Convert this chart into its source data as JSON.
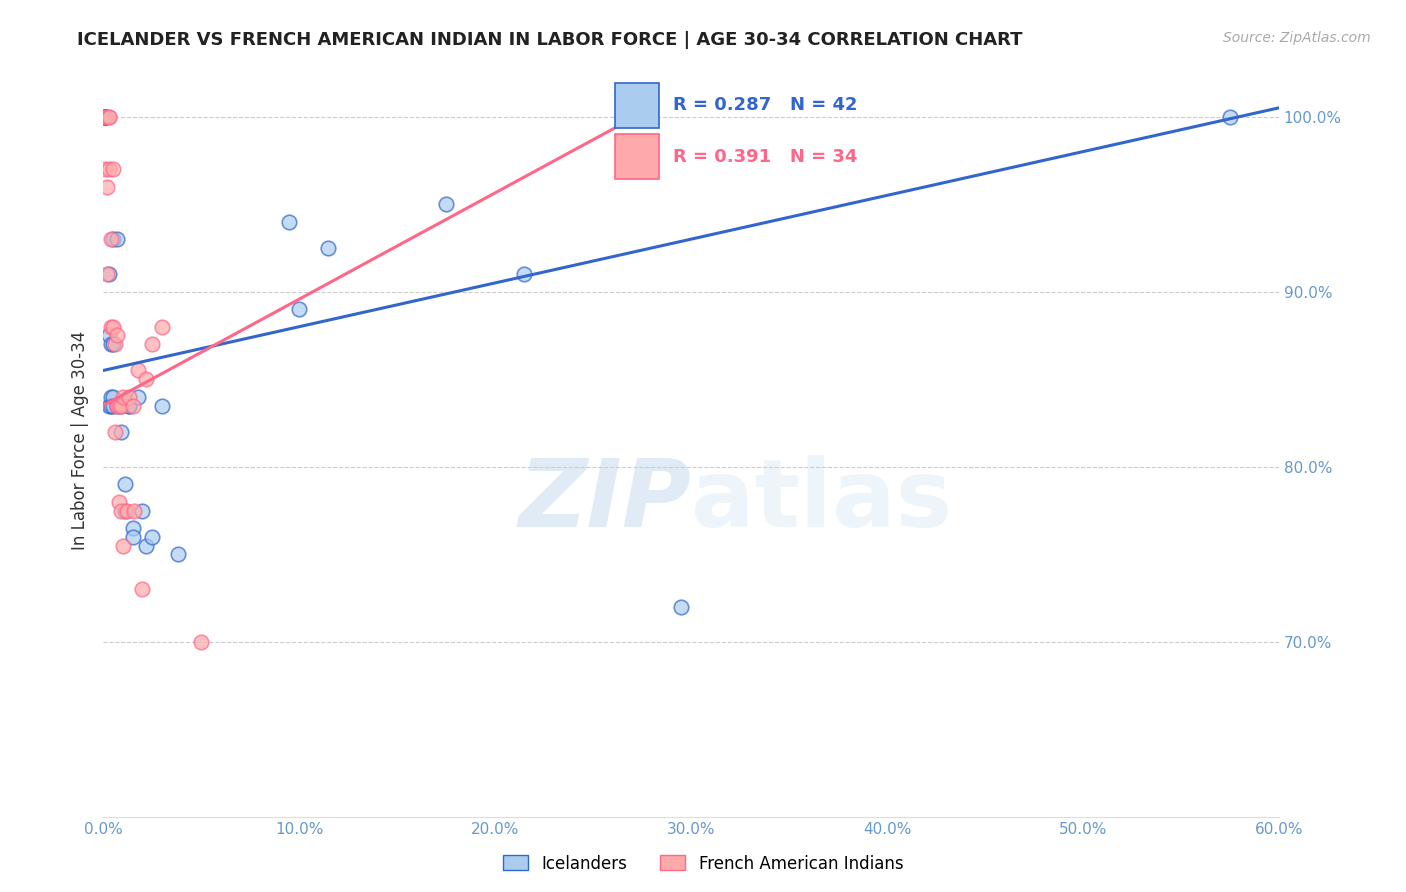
{
  "title": "ICELANDER VS FRENCH AMERICAN INDIAN IN LABOR FORCE | AGE 30-34 CORRELATION CHART",
  "source": "Source: ZipAtlas.com",
  "ylabel": "In Labor Force | Age 30-34",
  "xlim": [
    0.0,
    0.6
  ],
  "ylim": [
    0.6,
    1.03
  ],
  "yticks": [
    0.7,
    0.8,
    0.9,
    1.0
  ],
  "ytick_labels": [
    "70.0%",
    "80.0%",
    "90.0%",
    "100.0%"
  ],
  "xticks": [
    0.0,
    0.1,
    0.2,
    0.3,
    0.4,
    0.5,
    0.6
  ],
  "xtick_labels": [
    "0.0%",
    "10.0%",
    "20.0%",
    "30.0%",
    "40.0%",
    "50.0%",
    "60.0%"
  ],
  "legend_blue_label": "Icelanders",
  "legend_pink_label": "French American Indians",
  "R_blue": 0.287,
  "N_blue": 42,
  "R_pink": 0.391,
  "N_pink": 34,
  "blue_color": "#AACCEE",
  "pink_color": "#FFAAAA",
  "blue_line_color": "#3366CC",
  "pink_line_color": "#FF6688",
  "blue_line_x0": 0.0,
  "blue_line_y0": 0.855,
  "blue_line_x1": 0.6,
  "blue_line_y1": 1.005,
  "pink_line_x0": 0.0,
  "pink_line_y0": 0.835,
  "pink_line_x1": 0.28,
  "pink_line_y1": 1.005,
  "blue_points_x": [
    0.001,
    0.001,
    0.001,
    0.001,
    0.001,
    0.003,
    0.003,
    0.003,
    0.004,
    0.004,
    0.004,
    0.005,
    0.005,
    0.005,
    0.005,
    0.007,
    0.007,
    0.009,
    0.009,
    0.011,
    0.011,
    0.013,
    0.013,
    0.015,
    0.015,
    0.018,
    0.02,
    0.022,
    0.025,
    0.03,
    0.038,
    0.095,
    0.1,
    0.115,
    0.175,
    0.215,
    0.295,
    0.575
  ],
  "blue_points_y": [
    1.0,
    1.0,
    1.0,
    1.0,
    1.0,
    0.91,
    0.875,
    0.835,
    0.87,
    0.84,
    0.835,
    0.93,
    0.87,
    0.84,
    0.835,
    0.93,
    0.835,
    0.835,
    0.82,
    0.79,
    0.775,
    0.835,
    0.835,
    0.765,
    0.76,
    0.84,
    0.775,
    0.755,
    0.76,
    0.835,
    0.75,
    0.94,
    0.89,
    0.925,
    0.95,
    0.91,
    0.72,
    1.0
  ],
  "pink_points_x": [
    0.001,
    0.001,
    0.002,
    0.002,
    0.003,
    0.003,
    0.003,
    0.004,
    0.004,
    0.005,
    0.005,
    0.006,
    0.006,
    0.007,
    0.007,
    0.008,
    0.008,
    0.009,
    0.009,
    0.01,
    0.01,
    0.012,
    0.013,
    0.015,
    0.016,
    0.018,
    0.02,
    0.022,
    0.025,
    0.03,
    0.05
  ],
  "pink_points_y": [
    1.0,
    0.97,
    0.96,
    0.91,
    1.0,
    1.0,
    0.97,
    0.93,
    0.88,
    0.97,
    0.88,
    0.87,
    0.82,
    0.875,
    0.835,
    0.835,
    0.78,
    0.835,
    0.775,
    0.84,
    0.755,
    0.775,
    0.84,
    0.835,
    0.775,
    0.855,
    0.73,
    0.85,
    0.87,
    0.88,
    0.7
  ],
  "watermark_zip": "ZIP",
  "watermark_atlas": "atlas",
  "background_color": "#FFFFFF",
  "grid_color": "#CCCCCC"
}
